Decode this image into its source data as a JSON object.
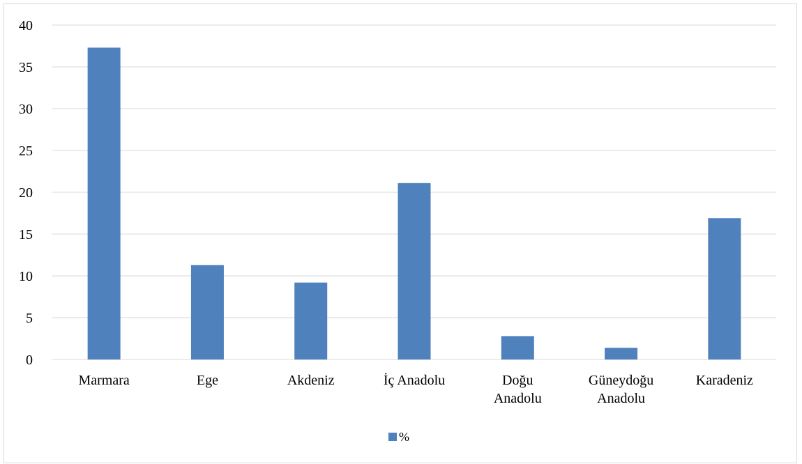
{
  "chart_data": {
    "type": "bar",
    "categories": [
      [
        "Marmara"
      ],
      [
        "Ege"
      ],
      [
        "Akdeniz"
      ],
      [
        "İç Anadolu"
      ],
      [
        "Doğu",
        "Anadolu"
      ],
      [
        "Güneydoğu",
        "Anadolu"
      ],
      [
        "Karadeniz"
      ]
    ],
    "series": [
      {
        "name": "%",
        "values": [
          37.3,
          11.3,
          9.2,
          21.1,
          2.8,
          1.4,
          16.9
        ]
      }
    ],
    "title": "",
    "xlabel": "",
    "ylabel": "",
    "ylim": [
      0,
      40
    ],
    "yticks": [
      0,
      5,
      10,
      15,
      20,
      25,
      30,
      35,
      40
    ],
    "grid": "horizontal",
    "legend": "bottom-center",
    "colors": {
      "bar": "#4f81bd",
      "grid": "#d9d9d9",
      "frame": "#d9d9d9",
      "text": "#000000"
    }
  }
}
